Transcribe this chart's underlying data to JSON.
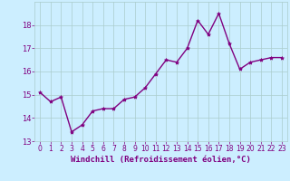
{
  "x": [
    0,
    1,
    2,
    3,
    4,
    5,
    6,
    7,
    8,
    9,
    10,
    11,
    12,
    13,
    14,
    15,
    16,
    17,
    18,
    19,
    20,
    21,
    22,
    23
  ],
  "y": [
    15.1,
    14.7,
    14.9,
    13.4,
    13.7,
    14.3,
    14.4,
    14.4,
    14.8,
    14.9,
    15.3,
    15.9,
    16.5,
    16.4,
    17.0,
    18.2,
    17.6,
    18.5,
    17.2,
    16.1,
    16.4,
    16.5,
    16.6,
    16.6
  ],
  "line_color": "#800080",
  "marker": "*",
  "marker_size": 3,
  "bg_color": "#cceeff",
  "grid_color": "#aacccc",
  "xlabel": "Windchill (Refroidissement éolien,°C)",
  "ylabel": "",
  "ylim": [
    13,
    19
  ],
  "xlim": [
    -0.5,
    23.5
  ],
  "yticks": [
    13,
    14,
    15,
    16,
    17,
    18
  ],
  "xticks": [
    0,
    1,
    2,
    3,
    4,
    5,
    6,
    7,
    8,
    9,
    10,
    11,
    12,
    13,
    14,
    15,
    16,
    17,
    18,
    19,
    20,
    21,
    22,
    23
  ],
  "tick_color": "#800080",
  "label_color": "#800080",
  "tick_fontsize": 5.5,
  "xlabel_fontsize": 6.5,
  "linewidth": 1.0
}
